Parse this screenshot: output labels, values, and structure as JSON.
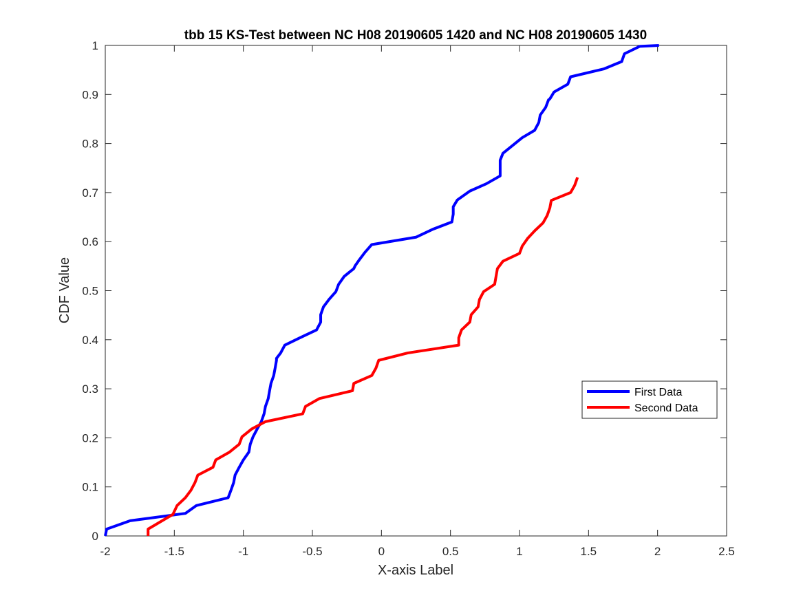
{
  "chart_data": {
    "type": "line",
    "title": "tbb 15 KS-Test between NC H08 20190605 1420 and NC H08 20190605 1430",
    "xlabel": "X-axis Label",
    "ylabel": "CDF Value",
    "xlim": [
      -2,
      2.5
    ],
    "ylim": [
      0,
      1
    ],
    "xticks": [
      -2,
      -1.5,
      -1,
      -0.5,
      0,
      0.5,
      1,
      1.5,
      2,
      2.5
    ],
    "xtick_labels": [
      "-2",
      "-1.5",
      "-1",
      "-0.5",
      "0",
      "0.5",
      "1",
      "1.5",
      "2",
      "2.5"
    ],
    "yticks": [
      0,
      0.1,
      0.2,
      0.3,
      0.4,
      0.5,
      0.6,
      0.7,
      0.8,
      0.9,
      1
    ],
    "ytick_labels": [
      "0",
      "0.1",
      "0.2",
      "0.3",
      "0.4",
      "0.5",
      "0.6",
      "0.7",
      "0.8",
      "0.9",
      "1"
    ],
    "grid": false,
    "legend_position": "right",
    "series": [
      {
        "name": "First Data",
        "color": "#0000ff",
        "x": [
          -2.0,
          -1.99,
          -1.82,
          -1.42,
          -1.34,
          -1.11,
          -1.09,
          -1.07,
          -1.06,
          -1.03,
          -1.0,
          -0.96,
          -0.95,
          -0.93,
          -0.9,
          -0.87,
          -0.85,
          -0.84,
          -0.82,
          -0.81,
          -0.8,
          -0.78,
          -0.77,
          -0.76,
          -0.76,
          -0.73,
          -0.7,
          -0.59,
          -0.47,
          -0.44,
          -0.44,
          -0.42,
          -0.38,
          -0.33,
          -0.31,
          -0.27,
          -0.2,
          -0.19,
          -0.16,
          -0.12,
          -0.07,
          0.25,
          0.37,
          0.51,
          0.52,
          0.52,
          0.55,
          0.64,
          0.76,
          0.86,
          0.86,
          0.88,
          1.02,
          1.11,
          1.14,
          1.15,
          1.19,
          1.21,
          1.22,
          1.25,
          1.35,
          1.37,
          1.61,
          1.74,
          1.76,
          1.87,
          2.01
        ],
        "y": [
          0.0,
          0.014,
          0.031,
          0.046,
          0.062,
          0.078,
          0.093,
          0.109,
          0.124,
          0.14,
          0.155,
          0.171,
          0.187,
          0.202,
          0.218,
          0.233,
          0.249,
          0.264,
          0.28,
          0.296,
          0.311,
          0.327,
          0.342,
          0.358,
          0.362,
          0.373,
          0.389,
          0.404,
          0.42,
          0.436,
          0.451,
          0.467,
          0.482,
          0.498,
          0.513,
          0.529,
          0.545,
          0.551,
          0.563,
          0.578,
          0.594,
          0.609,
          0.625,
          0.64,
          0.656,
          0.671,
          0.685,
          0.703,
          0.718,
          0.734,
          0.766,
          0.78,
          0.812,
          0.827,
          0.843,
          0.858,
          0.874,
          0.889,
          0.891,
          0.905,
          0.921,
          0.936,
          0.952,
          0.967,
          0.983,
          0.998,
          1.0
        ],
        "x_order": "paired"
      },
      {
        "name": "Second Data",
        "color": "#ff0000",
        "x": [
          -1.69,
          -1.69,
          -1.51,
          -1.48,
          -1.42,
          -1.38,
          -1.35,
          -1.33,
          -1.22,
          -1.2,
          -1.1,
          -1.03,
          -1.01,
          -0.94,
          -0.84,
          -0.57,
          -0.55,
          -0.45,
          -0.21,
          -0.2,
          -0.07,
          -0.04,
          -0.02,
          0.19,
          0.56,
          0.56,
          0.58,
          0.64,
          0.65,
          0.7,
          0.71,
          0.74,
          0.82,
          0.83,
          0.84,
          0.88,
          1.0,
          1.02,
          1.06,
          1.11,
          1.17,
          1.2,
          1.22,
          1.23,
          1.37,
          1.4,
          1.42
        ],
        "y": [
          0.0,
          0.014,
          0.044,
          0.062,
          0.078,
          0.093,
          0.109,
          0.124,
          0.14,
          0.155,
          0.171,
          0.187,
          0.202,
          0.218,
          0.233,
          0.249,
          0.264,
          0.28,
          0.296,
          0.311,
          0.327,
          0.342,
          0.358,
          0.373,
          0.389,
          0.404,
          0.42,
          0.436,
          0.451,
          0.467,
          0.482,
          0.498,
          0.513,
          0.529,
          0.545,
          0.56,
          0.576,
          0.591,
          0.607,
          0.622,
          0.638,
          0.653,
          0.669,
          0.684,
          0.7,
          0.715,
          0.731
        ],
        "x_order": "paired"
      }
    ]
  }
}
